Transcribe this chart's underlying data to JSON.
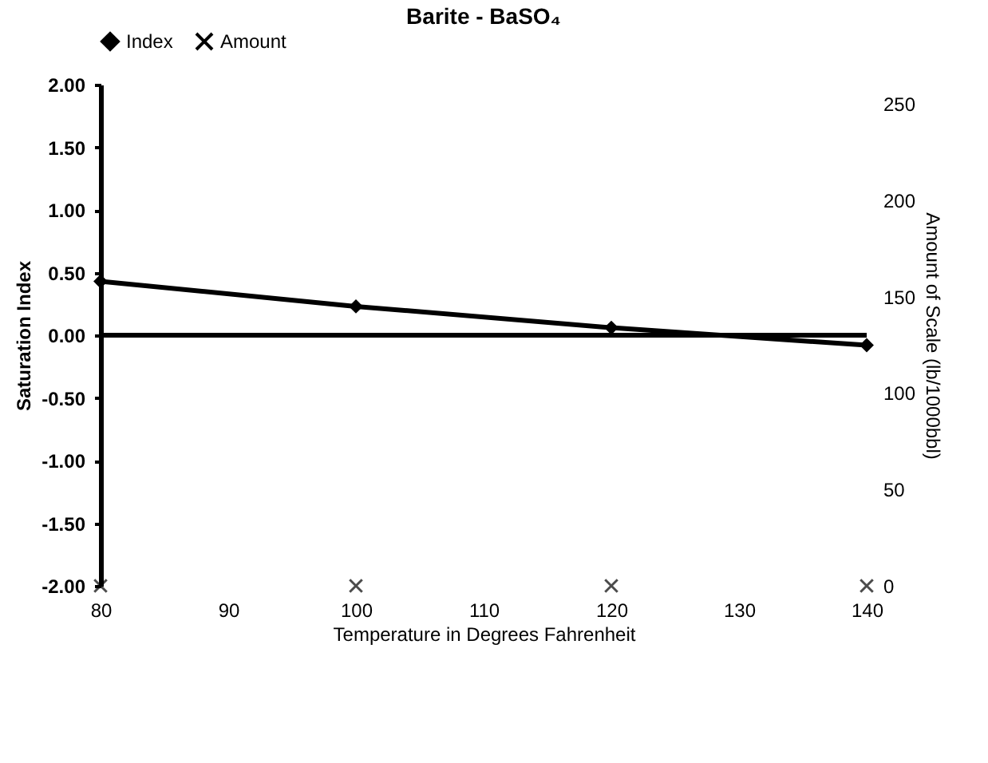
{
  "chart_data": {
    "type": "line",
    "title": "Barite - BaSO₄",
    "xlabel": "Temperature in Degrees Fahrenheit",
    "ylabel": "Saturation Index",
    "y2label": "Amount of Scale (lb/1000bbl)",
    "x": [
      80,
      100,
      120,
      140
    ],
    "series": [
      {
        "name": "Index",
        "color": "#000000",
        "marker": "diamond",
        "values": [
          0.43,
          0.23,
          0.06,
          -0.08
        ]
      },
      {
        "name": "Amount",
        "type": "scatter",
        "axis": "y2",
        "color": "#000000",
        "marker": "cross",
        "values": [
          0,
          0,
          0,
          0
        ]
      }
    ],
    "xlim": [
      80,
      140
    ],
    "xticks": [
      80,
      90,
      100,
      110,
      120,
      130,
      140
    ],
    "ylim": [
      -2,
      2
    ],
    "yticks": [
      {
        "value": -2,
        "label": "-2.00"
      },
      {
        "value": -1.5,
        "label": "-1.50"
      },
      {
        "value": -1,
        "label": "-1.00"
      },
      {
        "value": -0.5,
        "label": "-0.50"
      },
      {
        "value": 0,
        "label": "0.00"
      },
      {
        "value": 0.5,
        "label": "0.50"
      },
      {
        "value": 1,
        "label": "1.00"
      },
      {
        "value": 1.5,
        "label": "1.50"
      },
      {
        "value": 2,
        "label": "2.00"
      }
    ],
    "y2lim": [
      0,
      260
    ],
    "y2ticks": [
      0,
      50,
      100,
      150,
      200,
      250
    ],
    "ref_lines": [
      {
        "axis": "y",
        "value": 0,
        "color": "#000000"
      }
    ],
    "legend": "top",
    "grid": false
  }
}
